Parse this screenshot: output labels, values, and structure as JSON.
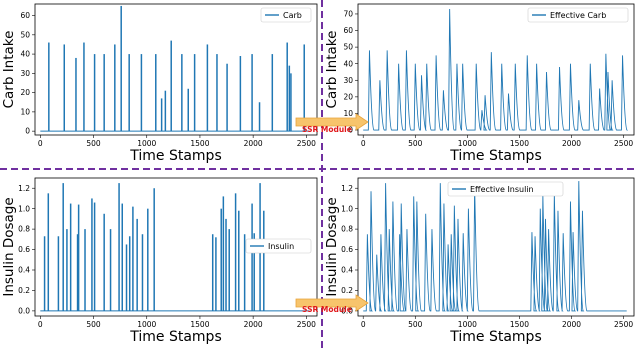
{
  "colors": {
    "series": "#1f77b4",
    "divider": "#7030a0",
    "arrow": "#f7c46c",
    "module_text": "#e0181b"
  },
  "modules": {
    "top": "SSR Module",
    "bottom": "SSR Module"
  },
  "chart_data": [
    {
      "type": "bar",
      "id": "carb",
      "xlabel": "Time Stamps",
      "ylabel": "Carb Intake",
      "legend": "Carb",
      "legend_position": "top-right",
      "xlim": [
        -50,
        2600
      ],
      "ylim": [
        -2,
        66
      ],
      "xticks": [
        0,
        500,
        1000,
        1500,
        2000,
        2500
      ],
      "yticks": [
        0,
        10,
        20,
        30,
        40,
        50,
        60
      ],
      "points": [
        [
          80,
          46
        ],
        [
          225,
          45
        ],
        [
          335,
          38
        ],
        [
          410,
          46
        ],
        [
          510,
          40
        ],
        [
          600,
          40
        ],
        [
          700,
          45
        ],
        [
          760,
          65
        ],
        [
          835,
          40
        ],
        [
          950,
          40
        ],
        [
          1085,
          40
        ],
        [
          1140,
          17
        ],
        [
          1175,
          21
        ],
        [
          1230,
          47
        ],
        [
          1330,
          40
        ],
        [
          1390,
          22
        ],
        [
          1450,
          40
        ],
        [
          1570,
          45
        ],
        [
          1660,
          40
        ],
        [
          1755,
          35
        ],
        [
          1880,
          39
        ],
        [
          1990,
          40
        ],
        [
          2060,
          15
        ],
        [
          2180,
          40
        ],
        [
          2320,
          46
        ],
        [
          2340,
          34
        ],
        [
          2355,
          30
        ],
        [
          2480,
          45
        ]
      ]
    },
    {
      "type": "line",
      "id": "effective-carb",
      "xlabel": "Time Stamps",
      "ylabel": "Carb Intake",
      "legend": "Effective Carb",
      "legend_position": "top-right",
      "xlim": [
        -50,
        2600
      ],
      "ylim": [
        -3,
        76
      ],
      "xticks": [
        0,
        500,
        1000,
        1500,
        2000,
        2500
      ],
      "yticks": [
        0,
        10,
        20,
        30,
        40,
        50,
        60,
        70
      ],
      "points": [
        [
          60,
          48
        ],
        [
          160,
          30
        ],
        [
          230,
          48
        ],
        [
          340,
          40
        ],
        [
          415,
          48
        ],
        [
          500,
          40
        ],
        [
          560,
          33
        ],
        [
          610,
          40
        ],
        [
          700,
          45
        ],
        [
          770,
          24
        ],
        [
          830,
          73
        ],
        [
          900,
          40
        ],
        [
          955,
          40
        ],
        [
          1085,
          40
        ],
        [
          1140,
          12
        ],
        [
          1170,
          21
        ],
        [
          1230,
          47
        ],
        [
          1330,
          40
        ],
        [
          1395,
          22
        ],
        [
          1460,
          40
        ],
        [
          1575,
          45
        ],
        [
          1665,
          40
        ],
        [
          1760,
          35
        ],
        [
          1885,
          38
        ],
        [
          1990,
          40
        ],
        [
          2070,
          18
        ],
        [
          2180,
          40
        ],
        [
          2270,
          25
        ],
        [
          2330,
          46
        ],
        [
          2350,
          35
        ],
        [
          2390,
          30
        ],
        [
          2490,
          45
        ]
      ]
    },
    {
      "type": "bar",
      "id": "insulin",
      "xlabel": "Time Stamps",
      "ylabel": "Insulin Dosage",
      "legend": "Insulin",
      "legend_position": "center-right",
      "xlim": [
        -50,
        2600
      ],
      "ylim": [
        -0.05,
        1.3
      ],
      "xticks": [
        0,
        500,
        1000,
        1500,
        2000,
        2500
      ],
      "yticks": [
        "0.0",
        "0.2",
        "0.4",
        "0.6",
        "0.8",
        "1.0",
        "1.2"
      ],
      "points": [
        [
          40,
          0.73
        ],
        [
          75,
          1.15
        ],
        [
          170,
          0.73
        ],
        [
          215,
          1.25
        ],
        [
          250,
          0.8
        ],
        [
          285,
          1.05
        ],
        [
          350,
          0.75
        ],
        [
          360,
          1.04
        ],
        [
          420,
          0.8
        ],
        [
          485,
          1.1
        ],
        [
          510,
          1.06
        ],
        [
          600,
          0.95
        ],
        [
          660,
          0.8
        ],
        [
          740,
          1.25
        ],
        [
          770,
          1.05
        ],
        [
          810,
          0.65
        ],
        [
          840,
          0.73
        ],
        [
          870,
          1.02
        ],
        [
          910,
          0.9
        ],
        [
          960,
          0.75
        ],
        [
          1010,
          1.0
        ],
        [
          1070,
          1.2
        ],
        [
          1620,
          0.75
        ],
        [
          1650,
          0.72
        ],
        [
          1700,
          1.0
        ],
        [
          1720,
          1.12
        ],
        [
          1745,
          0.9
        ],
        [
          1775,
          0.8
        ],
        [
          1835,
          1.15
        ],
        [
          1865,
          0.98
        ],
        [
          1920,
          0.75
        ],
        [
          1990,
          1.05
        ],
        [
          2010,
          0.76
        ],
        [
          2065,
          1.25
        ],
        [
          2100,
          0.98
        ]
      ]
    },
    {
      "type": "line",
      "id": "effective-insulin",
      "xlabel": "Time Stamps",
      "ylabel": "Insulin Dosage",
      "legend": "Effective Insulin",
      "legend_position": "top-left",
      "xlim": [
        -50,
        2600
      ],
      "ylim": [
        -0.05,
        1.3
      ],
      "xticks": [
        0,
        500,
        1000,
        1500,
        2000,
        2500
      ],
      "yticks": [
        "0.0",
        "0.2",
        "0.4",
        "0.6",
        "0.8",
        "1.0",
        "1.2"
      ],
      "points": [
        [
          40,
          0.75
        ],
        [
          75,
          1.17
        ],
        [
          130,
          0.55
        ],
        [
          170,
          0.75
        ],
        [
          215,
          1.25
        ],
        [
          250,
          0.8
        ],
        [
          285,
          1.07
        ],
        [
          350,
          0.75
        ],
        [
          365,
          1.05
        ],
        [
          420,
          0.8
        ],
        [
          485,
          1.12
        ],
        [
          515,
          1.07
        ],
        [
          600,
          0.95
        ],
        [
          660,
          0.8
        ],
        [
          740,
          1.25
        ],
        [
          775,
          1.05
        ],
        [
          815,
          0.65
        ],
        [
          845,
          0.75
        ],
        [
          875,
          1.03
        ],
        [
          910,
          0.9
        ],
        [
          960,
          0.76
        ],
        [
          1010,
          1.0
        ],
        [
          1070,
          1.23
        ],
        [
          1620,
          0.77
        ],
        [
          1650,
          0.73
        ],
        [
          1700,
          1.0
        ],
        [
          1725,
          1.13
        ],
        [
          1750,
          0.9
        ],
        [
          1780,
          0.8
        ],
        [
          1835,
          1.15
        ],
        [
          1870,
          0.98
        ],
        [
          1920,
          0.76
        ],
        [
          1990,
          1.07
        ],
        [
          2015,
          0.77
        ],
        [
          2070,
          1.27
        ],
        [
          2105,
          0.98
        ]
      ]
    }
  ]
}
